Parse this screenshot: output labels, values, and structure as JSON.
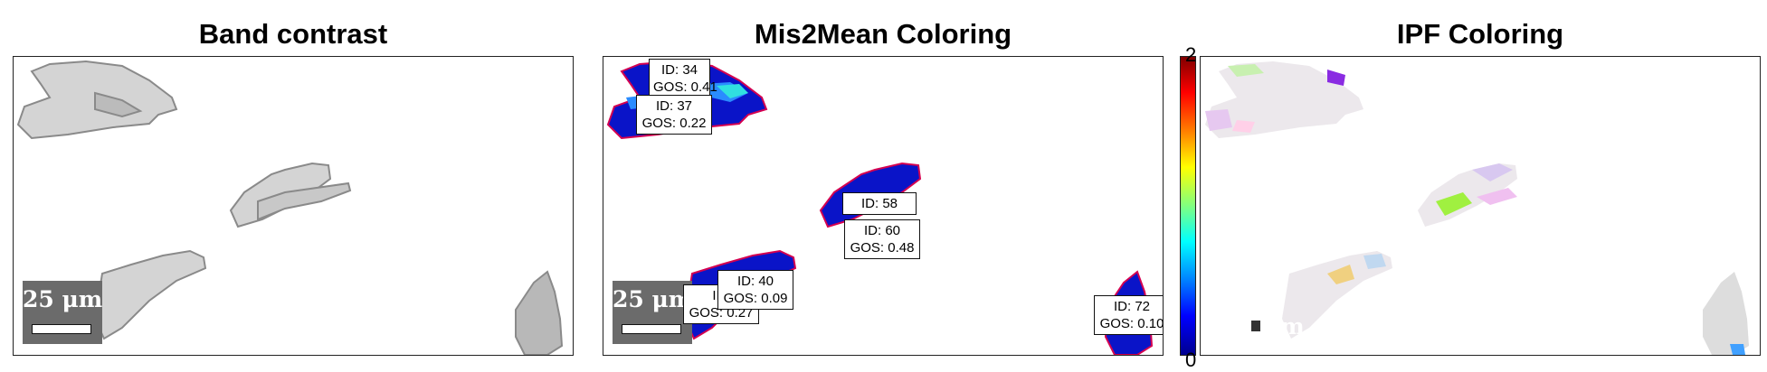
{
  "panels": {
    "band": {
      "title": "Band contrast",
      "scale_label": "25 μm"
    },
    "mis": {
      "title": "Mis2Mean Coloring",
      "scale_label": "25 μm",
      "labels": [
        {
          "id": "ID: 34",
          "gos": "GOS: 0.41"
        },
        {
          "id": "ID: 37",
          "gos": "GOS: 0.22"
        },
        {
          "id": "ID: 58",
          "gos": ""
        },
        {
          "id": "ID: 60",
          "gos": "GOS: 0.48"
        },
        {
          "id": "ID: 40",
          "gos": "GOS: 0.09"
        },
        {
          "id": "ID:",
          "gos": "GOS: 0.27"
        },
        {
          "id": "ID: 72",
          "gos": "GOS: 0.10"
        }
      ]
    },
    "ipf": {
      "title": "IPF Coloring",
      "scale_label": "μm"
    }
  },
  "colorbar": {
    "max_label": "2",
    "min_label": "0"
  },
  "colors": {
    "low": "#00008f",
    "high": "#800000",
    "scale_bg": "#6b6b6b"
  }
}
